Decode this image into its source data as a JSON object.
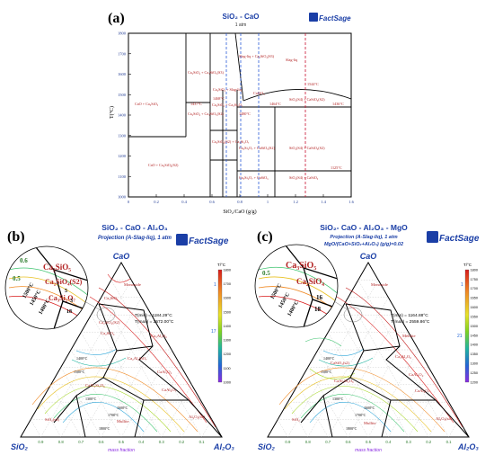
{
  "colors": {
    "phase_label": "#b22222",
    "axis_blue": "#1f3a93",
    "title_blue": "#1a3ea6",
    "fact_blue": "#1a3ea6",
    "fact_red": "#c0282c",
    "dashed_red": "#c8102e",
    "dashed_blue": "#2a5bd7"
  },
  "panel_a": {
    "letter": "(a)",
    "title_line1": "SiO₂ - CaO",
    "title_line2": "1 atm",
    "logo": "FactSage",
    "ylabel": "T(°C)",
    "xlabel": "SiO₂/CaO (g/g)",
    "yticks": [
      "1800",
      "1700",
      "1600",
      "1500",
      "1400",
      "1300",
      "1200",
      "1100",
      "1000"
    ],
    "xticks": [
      "0",
      "0.2",
      "0.4",
      "0.6",
      "0.8",
      "1",
      "1.2",
      "1.4",
      "1.6"
    ],
    "labels": {
      "cao_ca3sio5": "CaO + Ca₃SiO₅",
      "ca2sio4_ca3sio5": "Ca₂SiO₄ + Ca₃SiO₅(S3)",
      "t1437": "1437°C",
      "ca2sio4_ca3sio5_s2": "Ca₂SiO₄ + Ca₃SiO₅(S2)",
      "cao_ca2sio4": "CaO + Ca₂SiO₄(S2)",
      "slag_liq_ca2sio4": "Slag-liq + Ca₂SiO₄(S3)",
      "slag_liq": "Slag-liq",
      "ca3si2o7_slag": "Ca₂SiO₄ + Slag-liq",
      "t1468": "1468°C",
      "t1464": "1464°C",
      "ca2sio4_ca3si2o7": "Ca₂SiO₄ + Ca₃Si₂O₇",
      "sio2_slag": "SiO₂(S4) + CaSiO₃(S2)",
      "t1544": "1544°C",
      "t1436": "1436°C",
      "casio3": "CaSiO₃",
      "ca2sio4_s2_ca3si2o7": "Ca₂SiO₄(S2) + Ca₃Si₂O₇",
      "ca3si2o7_casio3": "Ca₃Si₂O₇ + CaSiO₃(S2)",
      "sio2_casio3_s2": "SiO₂(S4) + CaSiO₃(S2)",
      "t1125": "1125°C",
      "ca2sio4_ca3si2o7_low": "Ca₃Si₂O₇ + CaSiO₃",
      "sio2_casio3": "SiO₂(S4) + CaSiO₃",
      "t1480": "1480°C"
    }
  },
  "panel_b": {
    "letter": "(b)",
    "title_line1": "SiO₂ - CaO - Al₂O₃",
    "title_line2": "Projection (A-Slag-liq), 1 atm",
    "logo": "FactSage",
    "apex_top": "CaO",
    "apex_left": "SiO₂",
    "apex_right": "Al₂O₃",
    "xlabel": "mass fraction",
    "tmin": "T(min) = 1184.29°C",
    "tmax": "T(max) = 2572.00°C",
    "colorbar_title": "T/°C",
    "colorbar_ticks": [
      "1800",
      "1700",
      "1600",
      "1500",
      "1400",
      "1300",
      "1200",
      "1100",
      "1000"
    ],
    "colorbar_marks": [
      "1",
      "17"
    ],
    "zoom_labels": [
      "0.6",
      "0.5",
      "Ca₃SiO₅",
      "Ca₂SiO₄(S2)",
      "1500°C",
      "1450°C",
      "1400°C",
      "Ca₃Si₂O₇",
      "5",
      "3",
      "18"
    ],
    "regions": [
      "Monoxide",
      "Ca₃SiO₅",
      "Ca₂SiO₄(S2)",
      "Ca₂Al₂SiO₇",
      "Ca₃Al₂O₆",
      "CaAl₂O₄",
      "CaAl₄O₇",
      "CaAl₂Si₂O₈",
      "Mullite",
      "Al₂O₃(s4)",
      "SiO₂(s4)",
      "Ca₂SiO₄",
      "1300°C",
      "1400°C",
      "1500°C",
      "1600°C",
      "1700°C",
      "1800°C"
    ],
    "bottom_ticks": [
      "0.9",
      "0.8",
      "0.7",
      "0.6",
      "0.5",
      "0.4",
      "0.3",
      "0.2",
      "0.1"
    ],
    "left_ticks": [
      "0.1",
      "0.2",
      "0.3",
      "0.4",
      "0.5",
      "0.6",
      "0.7",
      "0.8",
      "0.9"
    ],
    "right_ticks": [
      "0.9",
      "0.8",
      "0.7",
      "0.6",
      "0.5",
      "0.4",
      "0.3",
      "0.2",
      "0.1"
    ]
  },
  "panel_c": {
    "letter": "(c)",
    "title_line1": "SiO₂- CaO - Al₂O₃ - MgO",
    "title_line2": "Projection (A-Slag-liq), 1 atm",
    "title_line3": "MgO/(CaO+SiO₂+Al₂O₃) (g/g)=0.02",
    "logo": "FactSage",
    "apex_top": "CaO",
    "apex_left": "SiO₂",
    "apex_right": "Al₂O₃",
    "xlabel": "mass fraction",
    "tmin": "T(min) = 1164.88°C",
    "tmax": "T(max) = 2559.86°C",
    "colorbar_title": "T/°C",
    "colorbar_ticks": [
      "1800",
      "1750",
      "1700",
      "1650",
      "1600",
      "1550",
      "1500",
      "1450",
      "1400",
      "1350",
      "1300",
      "1250",
      "1200"
    ],
    "colorbar_marks": [
      "1",
      "21"
    ],
    "zoom_labels": [
      "0.5",
      "Ca₃SiO₅",
      "Ca₂SiO₄",
      "1500°C",
      "1450°C",
      "1400°C",
      "18",
      "16"
    ],
    "regions": [
      "Monoxide",
      "Melilite",
      "CaSiO₃(s2)",
      "CaAl₂Si₂O₈",
      "Ca₃Al₂O₆",
      "CaAl₂O₄",
      "CaAl₄O₇",
      "Mullite",
      "Al₂O₃(s4)",
      "SiO₂",
      "1300°C",
      "1400°C",
      "1500°C",
      "1600°C",
      "1700°C",
      "1800°C"
    ],
    "bottom_ticks": [
      "0.9",
      "0.8",
      "0.7",
      "0.6",
      "0.5",
      "0.4",
      "0.3",
      "0.2",
      "0.1"
    ],
    "left_ticks": [
      "0.1",
      "0.2",
      "0.3",
      "0.4",
      "0.5",
      "0.6",
      "0.7",
      "0.8",
      "0.9"
    ],
    "right_ticks": [
      "0.9",
      "0.8",
      "0.7",
      "0.6",
      "0.5",
      "0.4",
      "0.3",
      "0.2",
      "0.1"
    ]
  }
}
